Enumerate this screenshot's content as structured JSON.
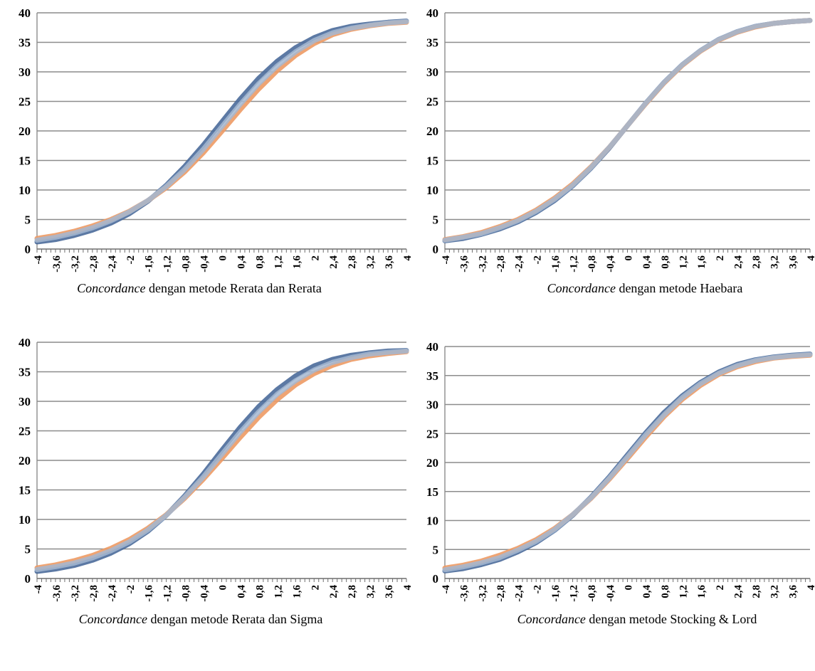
{
  "chart_data": [
    {
      "type": "line",
      "caption_italic": "Concordance",
      "caption_rest": " dengan metode Rerata dan Rerata",
      "x_tick_labels": [
        "-4",
        "-3,6",
        "-3,2",
        "-2,8",
        "-2,4",
        "-2",
        "-1,6",
        "-1,2",
        "-0,8",
        "-0,4",
        "0",
        "0,4",
        "0,8",
        "1,2",
        "1,6",
        "2",
        "2,4",
        "2,8",
        "3,2",
        "3,6",
        "4"
      ],
      "y_tick_labels": [
        "0",
        "5",
        "10",
        "15",
        "20",
        "25",
        "30",
        "35",
        "40"
      ],
      "xlim": [
        -4,
        4
      ],
      "ylim": [
        0,
        40
      ],
      "grid": "horizontal",
      "legend": "none",
      "series": [
        {
          "color": "#4a6a9a",
          "x": [
            -4,
            -3.6,
            -3.2,
            -2.8,
            -2.4,
            -2,
            -1.6,
            -1.2,
            -0.8,
            -0.4,
            0,
            0.4,
            0.8,
            1.2,
            1.6,
            2,
            2.4,
            2.8,
            3.2,
            3.6,
            4
          ],
          "y": [
            1.2,
            1.6,
            2.3,
            3.2,
            4.4,
            6.0,
            8.1,
            10.8,
            14.0,
            17.6,
            21.5,
            25.4,
            28.9,
            31.8,
            34.1,
            35.8,
            37.0,
            37.7,
            38.1,
            38.4,
            38.6
          ]
        },
        {
          "color": "#ed9a64",
          "x": [
            -4,
            -3.6,
            -3.2,
            -2.8,
            -2.4,
            -2,
            -1.6,
            -1.2,
            -0.8,
            -0.4,
            0,
            0.4,
            0.8,
            1.2,
            1.6,
            2,
            2.4,
            2.8,
            3.2,
            3.6,
            4
          ],
          "y": [
            1.8,
            2.3,
            3.0,
            3.9,
            5.0,
            6.4,
            8.2,
            10.4,
            13.1,
            16.3,
            19.9,
            23.6,
            27.1,
            30.2,
            32.8,
            34.8,
            36.3,
            37.2,
            37.8,
            38.2,
            38.4
          ]
        },
        {
          "color": "#a5b9d2",
          "x": [
            -4,
            -3.6,
            -3.2,
            -2.8,
            -2.4,
            -2,
            -1.6,
            -1.2,
            -0.8,
            -0.4,
            0,
            0.4,
            0.8,
            1.2,
            1.6,
            2,
            2.4,
            2.8,
            3.2,
            3.6,
            4
          ],
          "y": [
            1.5,
            2.0,
            2.7,
            3.6,
            4.8,
            6.3,
            8.2,
            10.6,
            13.5,
            16.9,
            20.7,
            24.5,
            28.0,
            31.0,
            33.4,
            35.3,
            36.6,
            37.4,
            37.9,
            38.3,
            38.5
          ]
        }
      ]
    },
    {
      "type": "line",
      "caption_italic": "Concordance",
      "caption_rest": " dengan metode Haebara",
      "x_tick_labels": [
        "-4",
        "-3,6",
        "-3,2",
        "-2,8",
        "-2,4",
        "-2",
        "-1,6",
        "-1,2",
        "-0,8",
        "-0,4",
        "0",
        "0,4",
        "0,8",
        "1,2",
        "1,6",
        "2",
        "2,4",
        "2,8",
        "3,2",
        "3,6",
        "4"
      ],
      "y_tick_labels": [
        "0",
        "5",
        "10",
        "15",
        "20",
        "25",
        "30",
        "35",
        "40"
      ],
      "xlim": [
        -4,
        4
      ],
      "ylim": [
        0,
        40
      ],
      "grid": "horizontal",
      "legend": "none",
      "series": [
        {
          "color": "#4a6a9a",
          "x": [
            -4,
            -3.6,
            -3.2,
            -2.8,
            -2.4,
            -2,
            -1.6,
            -1.2,
            -0.8,
            -0.4,
            0,
            0.4,
            0.8,
            1.2,
            1.6,
            2,
            2.4,
            2.8,
            3.2,
            3.6,
            4
          ],
          "y": [
            1.4,
            1.8,
            2.5,
            3.4,
            4.6,
            6.2,
            8.2,
            10.7,
            13.7,
            17.1,
            20.9,
            24.7,
            28.2,
            31.2,
            33.6,
            35.5,
            36.8,
            37.7,
            38.2,
            38.5,
            38.7
          ]
        },
        {
          "color": "#ed9a64",
          "x": [
            -4,
            -3.6,
            -3.2,
            -2.8,
            -2.4,
            -2,
            -1.6,
            -1.2,
            -0.8,
            -0.4,
            0,
            0.4,
            0.8,
            1.2,
            1.6,
            2,
            2.4,
            2.8,
            3.2,
            3.6,
            4
          ],
          "y": [
            1.6,
            2.1,
            2.8,
            3.8,
            5.0,
            6.6,
            8.6,
            11.0,
            13.9,
            17.2,
            20.9,
            24.6,
            28.1,
            31.1,
            33.5,
            35.4,
            36.7,
            37.6,
            38.2,
            38.5,
            38.7
          ]
        },
        {
          "color": "#a5b9d2",
          "x": [
            -4,
            -3.6,
            -3.2,
            -2.8,
            -2.4,
            -2,
            -1.6,
            -1.2,
            -0.8,
            -0.4,
            0,
            0.4,
            0.8,
            1.2,
            1.6,
            2,
            2.4,
            2.8,
            3.2,
            3.6,
            4
          ],
          "y": [
            1.5,
            2.0,
            2.6,
            3.6,
            4.8,
            6.4,
            8.4,
            10.8,
            13.8,
            17.2,
            20.9,
            24.7,
            28.2,
            31.2,
            33.6,
            35.5,
            36.8,
            37.7,
            38.2,
            38.5,
            38.7
          ]
        }
      ]
    },
    {
      "type": "line",
      "caption_italic": "Concordance",
      "caption_rest": " dengan metode Rerata dan Sigma",
      "x_tick_labels": [
        "-4",
        "-3,6",
        "-3,2",
        "-2,8",
        "-2,4",
        "-2",
        "-1,6",
        "-1,2",
        "-0,8",
        "-0,4",
        "0",
        "0,4",
        "0,8",
        "1,2",
        "1,6",
        "2",
        "2,4",
        "2,8",
        "3,2",
        "3,6",
        "4"
      ],
      "y_tick_labels": [
        "0",
        "5",
        "10",
        "15",
        "20",
        "25",
        "30",
        "35",
        "40"
      ],
      "xlim": [
        -4,
        4
      ],
      "ylim": [
        0,
        40
      ],
      "grid": "horizontal",
      "legend": "none",
      "series": [
        {
          "color": "#4a6a9a",
          "x": [
            -4,
            -3.6,
            -3.2,
            -2.8,
            -2.4,
            -2,
            -1.6,
            -1.2,
            -0.8,
            -0.4,
            0,
            0.4,
            0.8,
            1.2,
            1.6,
            2,
            2.4,
            2.8,
            3.2,
            3.6,
            4
          ],
          "y": [
            1.2,
            1.6,
            2.2,
            3.1,
            4.3,
            5.9,
            8.0,
            10.7,
            14.0,
            17.7,
            21.7,
            25.6,
            29.1,
            32.0,
            34.3,
            36.0,
            37.1,
            37.8,
            38.2,
            38.5,
            38.6
          ]
        },
        {
          "color": "#ed9a64",
          "x": [
            -4,
            -3.6,
            -3.2,
            -2.8,
            -2.4,
            -2,
            -1.6,
            -1.2,
            -0.8,
            -0.4,
            0,
            0.4,
            0.8,
            1.2,
            1.6,
            2,
            2.4,
            2.8,
            3.2,
            3.6,
            4
          ],
          "y": [
            1.8,
            2.3,
            3.0,
            3.9,
            5.1,
            6.6,
            8.5,
            10.8,
            13.6,
            16.8,
            20.3,
            23.9,
            27.3,
            30.3,
            32.8,
            34.7,
            36.1,
            37.1,
            37.7,
            38.1,
            38.4
          ]
        },
        {
          "color": "#a5b9d2",
          "x": [
            -4,
            -3.6,
            -3.2,
            -2.8,
            -2.4,
            -2,
            -1.6,
            -1.2,
            -0.8,
            -0.4,
            0,
            0.4,
            0.8,
            1.2,
            1.6,
            2,
            2.4,
            2.8,
            3.2,
            3.6,
            4
          ],
          "y": [
            1.5,
            2.0,
            2.6,
            3.5,
            4.7,
            6.2,
            8.2,
            10.7,
            13.8,
            17.2,
            21.0,
            24.8,
            28.2,
            31.2,
            33.5,
            35.3,
            36.6,
            37.4,
            38.0,
            38.3,
            38.5
          ]
        }
      ]
    },
    {
      "type": "line",
      "caption_italic": "Concordance",
      "caption_rest": " dengan metode Stocking & Lord",
      "x_tick_labels": [
        "-4",
        "-3,6",
        "-3,2",
        "-2,8",
        "-2,4",
        "-2",
        "-1,6",
        "-1,2",
        "-0,8",
        "-0,4",
        "0",
        "0,4",
        "0,8",
        "1,2",
        "1,6",
        "2",
        "2,4",
        "2,8",
        "3,2",
        "3,6",
        "4"
      ],
      "y_tick_labels": [
        "0",
        "5",
        "10",
        "15",
        "20",
        "25",
        "30",
        "35",
        "40"
      ],
      "xlim": [
        -4,
        4
      ],
      "ylim": [
        0,
        40
      ],
      "grid": "horizontal",
      "legend": "none",
      "series": [
        {
          "color": "#4a6a9a",
          "x": [
            -4,
            -3.6,
            -3.2,
            -2.8,
            -2.4,
            -2,
            -1.6,
            -1.2,
            -0.8,
            -0.4,
            0,
            0.4,
            0.8,
            1.2,
            1.6,
            2,
            2.4,
            2.8,
            3.2,
            3.6,
            4
          ],
          "y": [
            1.3,
            1.7,
            2.4,
            3.3,
            4.6,
            6.2,
            8.3,
            10.9,
            14.0,
            17.5,
            21.3,
            25.1,
            28.6,
            31.5,
            33.8,
            35.6,
            36.9,
            37.7,
            38.2,
            38.5,
            38.7
          ]
        },
        {
          "color": "#ed9a64",
          "x": [
            -4,
            -3.6,
            -3.2,
            -2.8,
            -2.4,
            -2,
            -1.6,
            -1.2,
            -0.8,
            -0.4,
            0,
            0.4,
            0.8,
            1.2,
            1.6,
            2,
            2.4,
            2.8,
            3.2,
            3.6,
            4
          ],
          "y": [
            1.8,
            2.3,
            3.0,
            4.0,
            5.2,
            6.7,
            8.6,
            11.0,
            13.8,
            17.1,
            20.7,
            24.4,
            27.9,
            30.9,
            33.3,
            35.2,
            36.5,
            37.4,
            38.0,
            38.3,
            38.5
          ]
        },
        {
          "color": "#a5b9d2",
          "x": [
            -4,
            -3.6,
            -3.2,
            -2.8,
            -2.4,
            -2,
            -1.6,
            -1.2,
            -0.8,
            -0.4,
            0,
            0.4,
            0.8,
            1.2,
            1.6,
            2,
            2.4,
            2.8,
            3.2,
            3.6,
            4
          ],
          "y": [
            1.5,
            2.0,
            2.7,
            3.6,
            4.9,
            6.4,
            8.4,
            11.0,
            13.9,
            17.3,
            21.0,
            24.8,
            28.2,
            31.2,
            33.6,
            35.4,
            36.7,
            37.6,
            38.1,
            38.4,
            38.6
          ]
        }
      ]
    }
  ]
}
